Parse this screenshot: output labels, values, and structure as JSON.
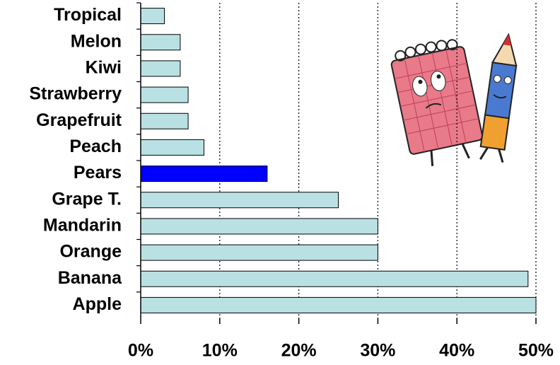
{
  "chart_data": {
    "type": "bar",
    "orientation": "horizontal",
    "categories": [
      "Tropical",
      "Melon",
      "Kiwi",
      "Strawberry",
      "Grapefruit",
      "Peach",
      "Pears",
      "Grape T.",
      "Mandarin",
      "Orange",
      "Banana",
      "Apple"
    ],
    "values": [
      3,
      5,
      5,
      6,
      6,
      8,
      16,
      25,
      30,
      30,
      49,
      50
    ],
    "colors": [
      "#b9e1e3",
      "#b9e1e3",
      "#b9e1e3",
      "#b9e1e3",
      "#b9e1e3",
      "#b9e1e3",
      "#0000ff",
      "#b9e1e3",
      "#b9e1e3",
      "#b9e1e3",
      "#b9e1e3",
      "#b9e1e3"
    ],
    "xlim": [
      0,
      50
    ],
    "xticks": [
      {
        "value": 0,
        "label": "0%"
      },
      {
        "value": 10,
        "label": "10%"
      },
      {
        "value": 20,
        "label": "20%"
      },
      {
        "value": 30,
        "label": "30%"
      },
      {
        "value": 40,
        "label": "40%"
      },
      {
        "value": 50,
        "label": "50%"
      }
    ],
    "grid": true
  }
}
